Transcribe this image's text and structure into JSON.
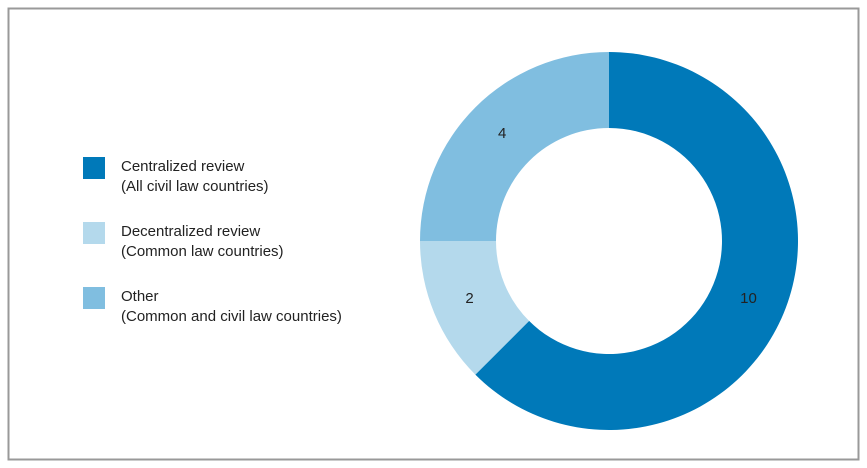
{
  "chart_data": {
    "type": "donut",
    "categories": [
      [
        "Centralized review",
        "(All civil law countries)"
      ],
      [
        "Decentralized review",
        "(Common law countries)"
      ],
      [
        "Other",
        "(Common and civil law countries)"
      ]
    ],
    "values": [
      10,
      2,
      4
    ],
    "colors": [
      "#0079b9",
      "#b4d9ec",
      "#80bee0"
    ]
  }
}
